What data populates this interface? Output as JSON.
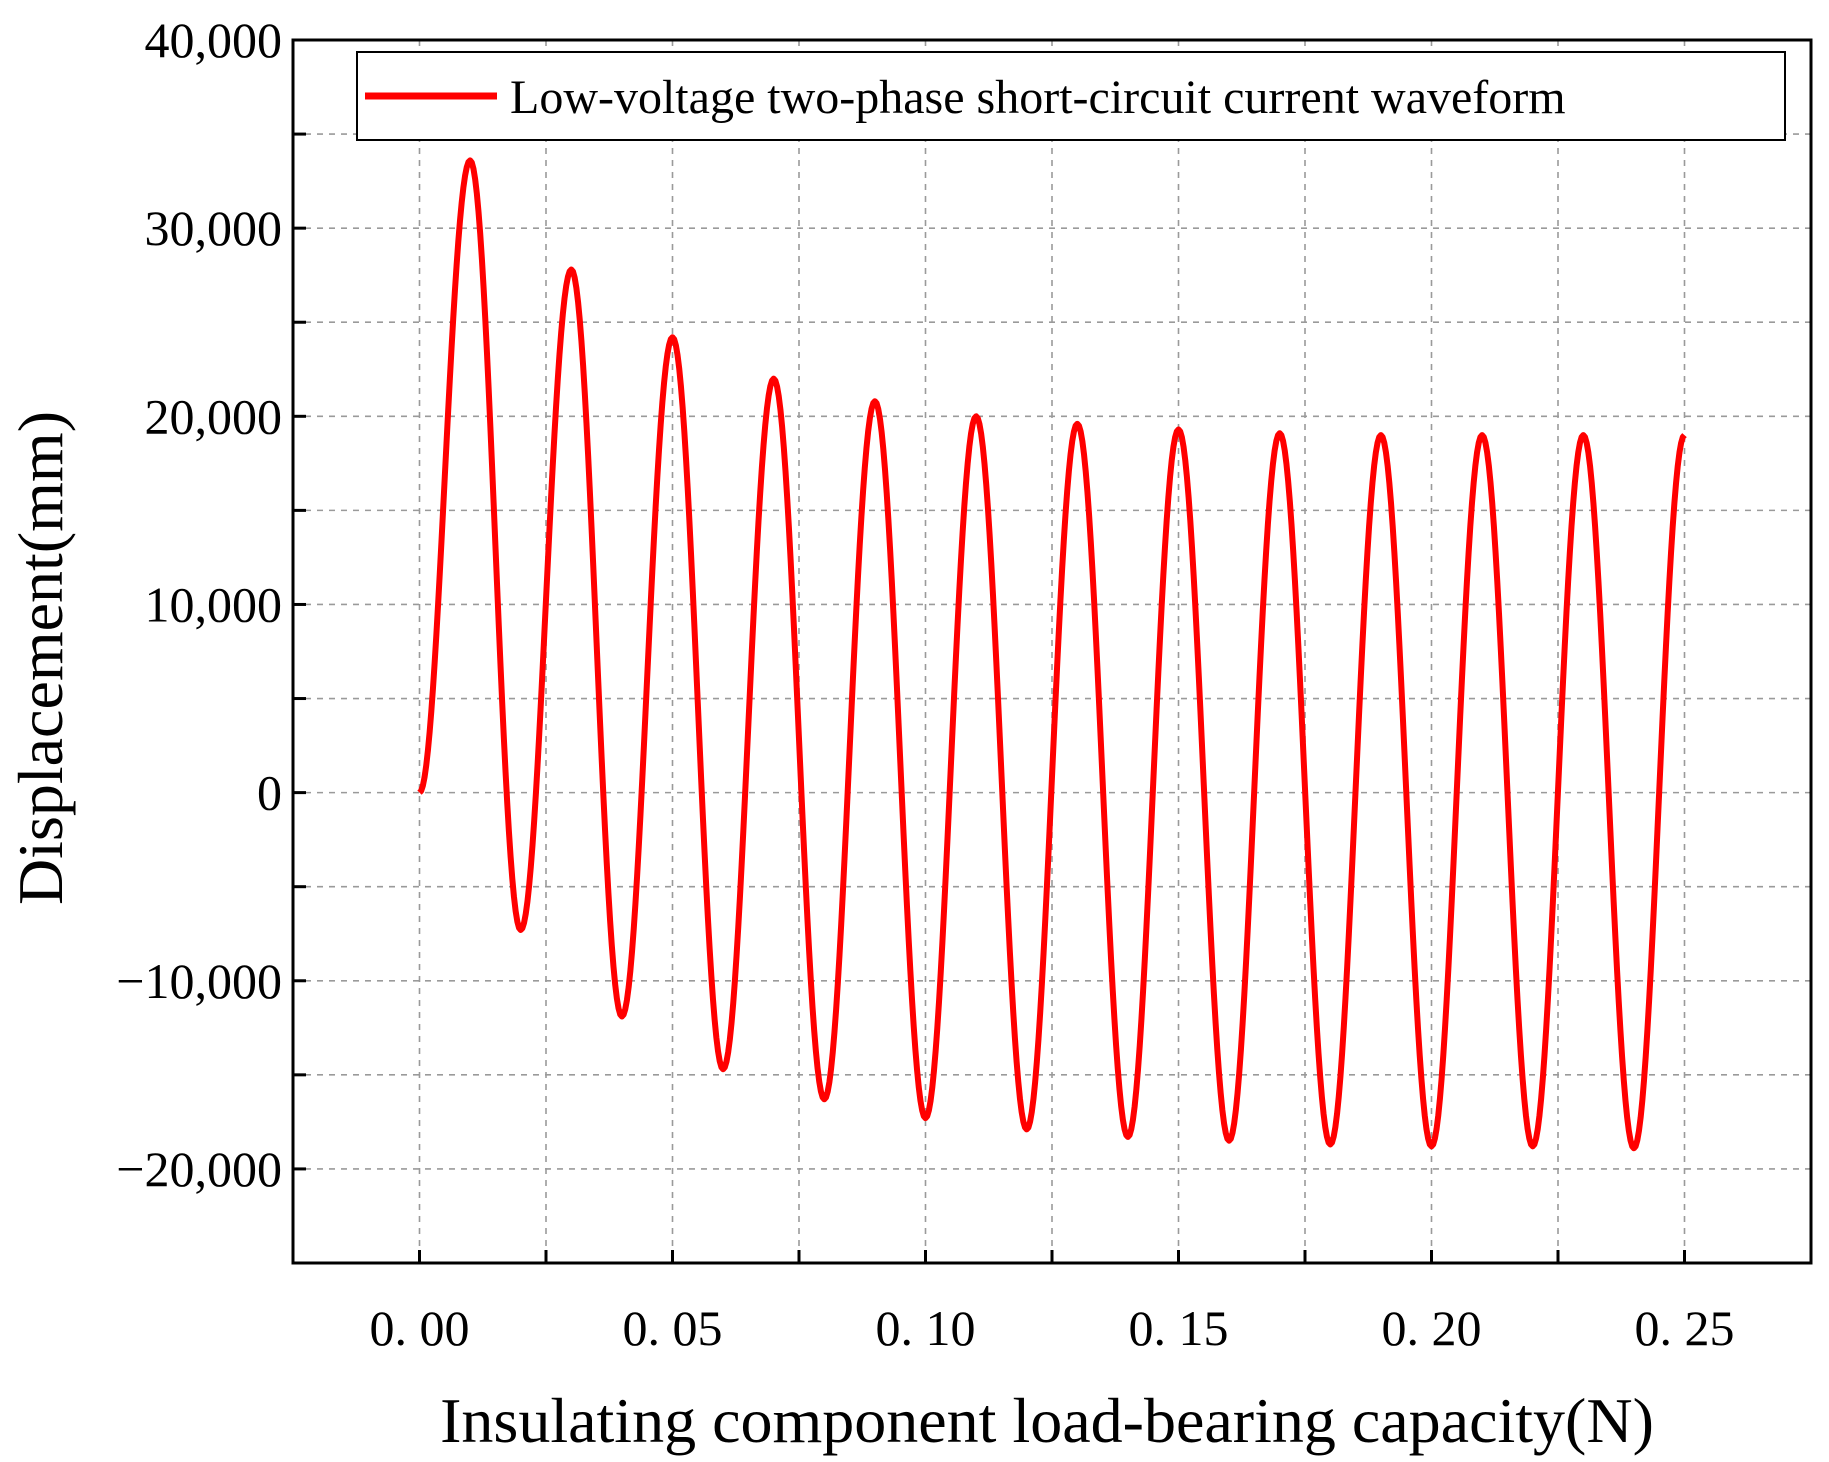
{
  "chart_data": {
    "type": "line",
    "xlabel": "Insulating component load-bearing capacity(N)",
    "ylabel": "Displacement(mm)",
    "xlim": [
      -0.025,
      0.275
    ],
    "ylim": [
      -25000,
      40000
    ],
    "x_ticks": [
      0.0,
      0.05,
      0.1,
      0.15,
      0.2,
      0.25
    ],
    "x_tick_labels": [
      "0. 00",
      "0. 05",
      "0. 10",
      "0. 15",
      "0. 20",
      "0. 25"
    ],
    "y_ticks": [
      40000,
      30000,
      20000,
      10000,
      0,
      -10000,
      -20000
    ],
    "y_tick_labels": [
      "40,000",
      "30,000",
      "20,000",
      "10,000",
      "0",
      "−10,000",
      "−20,000"
    ],
    "grid": true,
    "legend_position": "top-right",
    "colors": {
      "series": "#ff0000",
      "grid": "#9a9a9a",
      "axis": "#000000"
    },
    "series": [
      {
        "name": "Low-voltage two-phase short-circuit current waveform",
        "color": "#ff0000",
        "x": [
          0.0,
          0.01,
          0.02,
          0.03,
          0.04,
          0.05,
          0.06,
          0.07,
          0.08,
          0.09,
          0.1,
          0.11,
          0.12,
          0.13,
          0.14,
          0.15,
          0.16,
          0.17,
          0.18,
          0.19,
          0.2,
          0.21,
          0.22,
          0.23,
          0.24,
          0.25
        ],
        "y": [
          0,
          33600,
          -7300,
          27800,
          -11900,
          24200,
          -14700,
          22000,
          -16300,
          20800,
          -17300,
          20000,
          -17900,
          19600,
          -18300,
          19300,
          -18500,
          19100,
          -18700,
          19000,
          -18800,
          19000,
          -18800,
          19000,
          -18900,
          19000
        ]
      }
    ]
  }
}
